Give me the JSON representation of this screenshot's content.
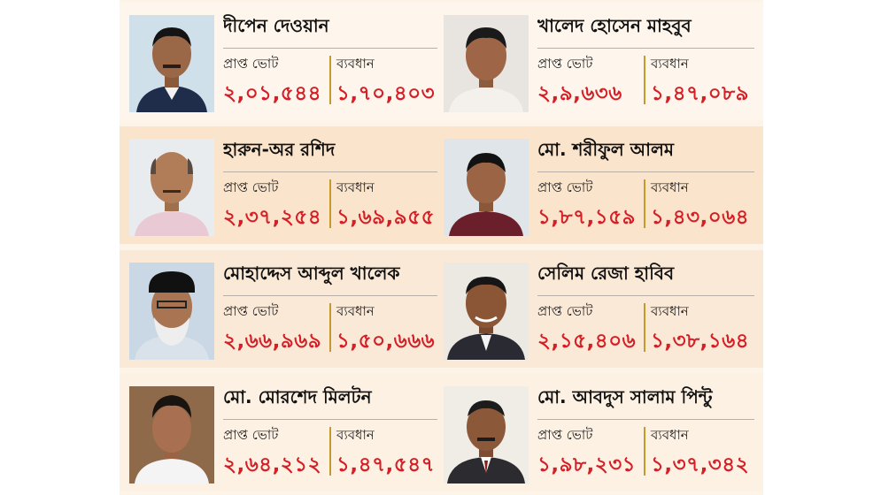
{
  "labels": {
    "votes": "প্রাপ্ত ভোট",
    "margin": "ব্যবধান"
  },
  "colors": {
    "accent_red": "#d51e25",
    "divider_gold": "#c49a2a"
  },
  "candidates": [
    {
      "name": "দীপেন দেওয়ান",
      "votes": "২,০১,৫৪৪",
      "margin": "১,৭০,৪০৩"
    },
    {
      "name": "খালেদ হোসেন মাহবুব",
      "votes": "২,৯,৬৩৬",
      "margin": "১,৪৭,০৮৯"
    },
    {
      "name": "হারুন-অর রশিদ",
      "votes": "২,৩৭,২৫৪",
      "margin": "১,৬৯,৯৫৫"
    },
    {
      "name": "মো. শরীফুল আলম",
      "votes": "১,৮৭,১৫৯",
      "margin": "১,৪৩,০৬৪"
    },
    {
      "name": "মোহাদ্দেস আব্দুল খালেক",
      "votes": "২,৬৬,৯৬৯",
      "margin": "১,৫০,৬৬৬"
    },
    {
      "name": "সেলিম রেজা হাবিব",
      "votes": "২,১৫,৪০৬",
      "margin": "১,৩৮,১৬৪"
    },
    {
      "name": "মো. মোরশেদ মিলটন",
      "votes": "২,৬৪,২১২",
      "margin": "১,৪৭,৫৪৭"
    },
    {
      "name": "মো. আবদুস সালাম পিন্টু",
      "votes": "১,৯৮,২৩১",
      "margin": "১,৩৭,৩৪২"
    }
  ]
}
